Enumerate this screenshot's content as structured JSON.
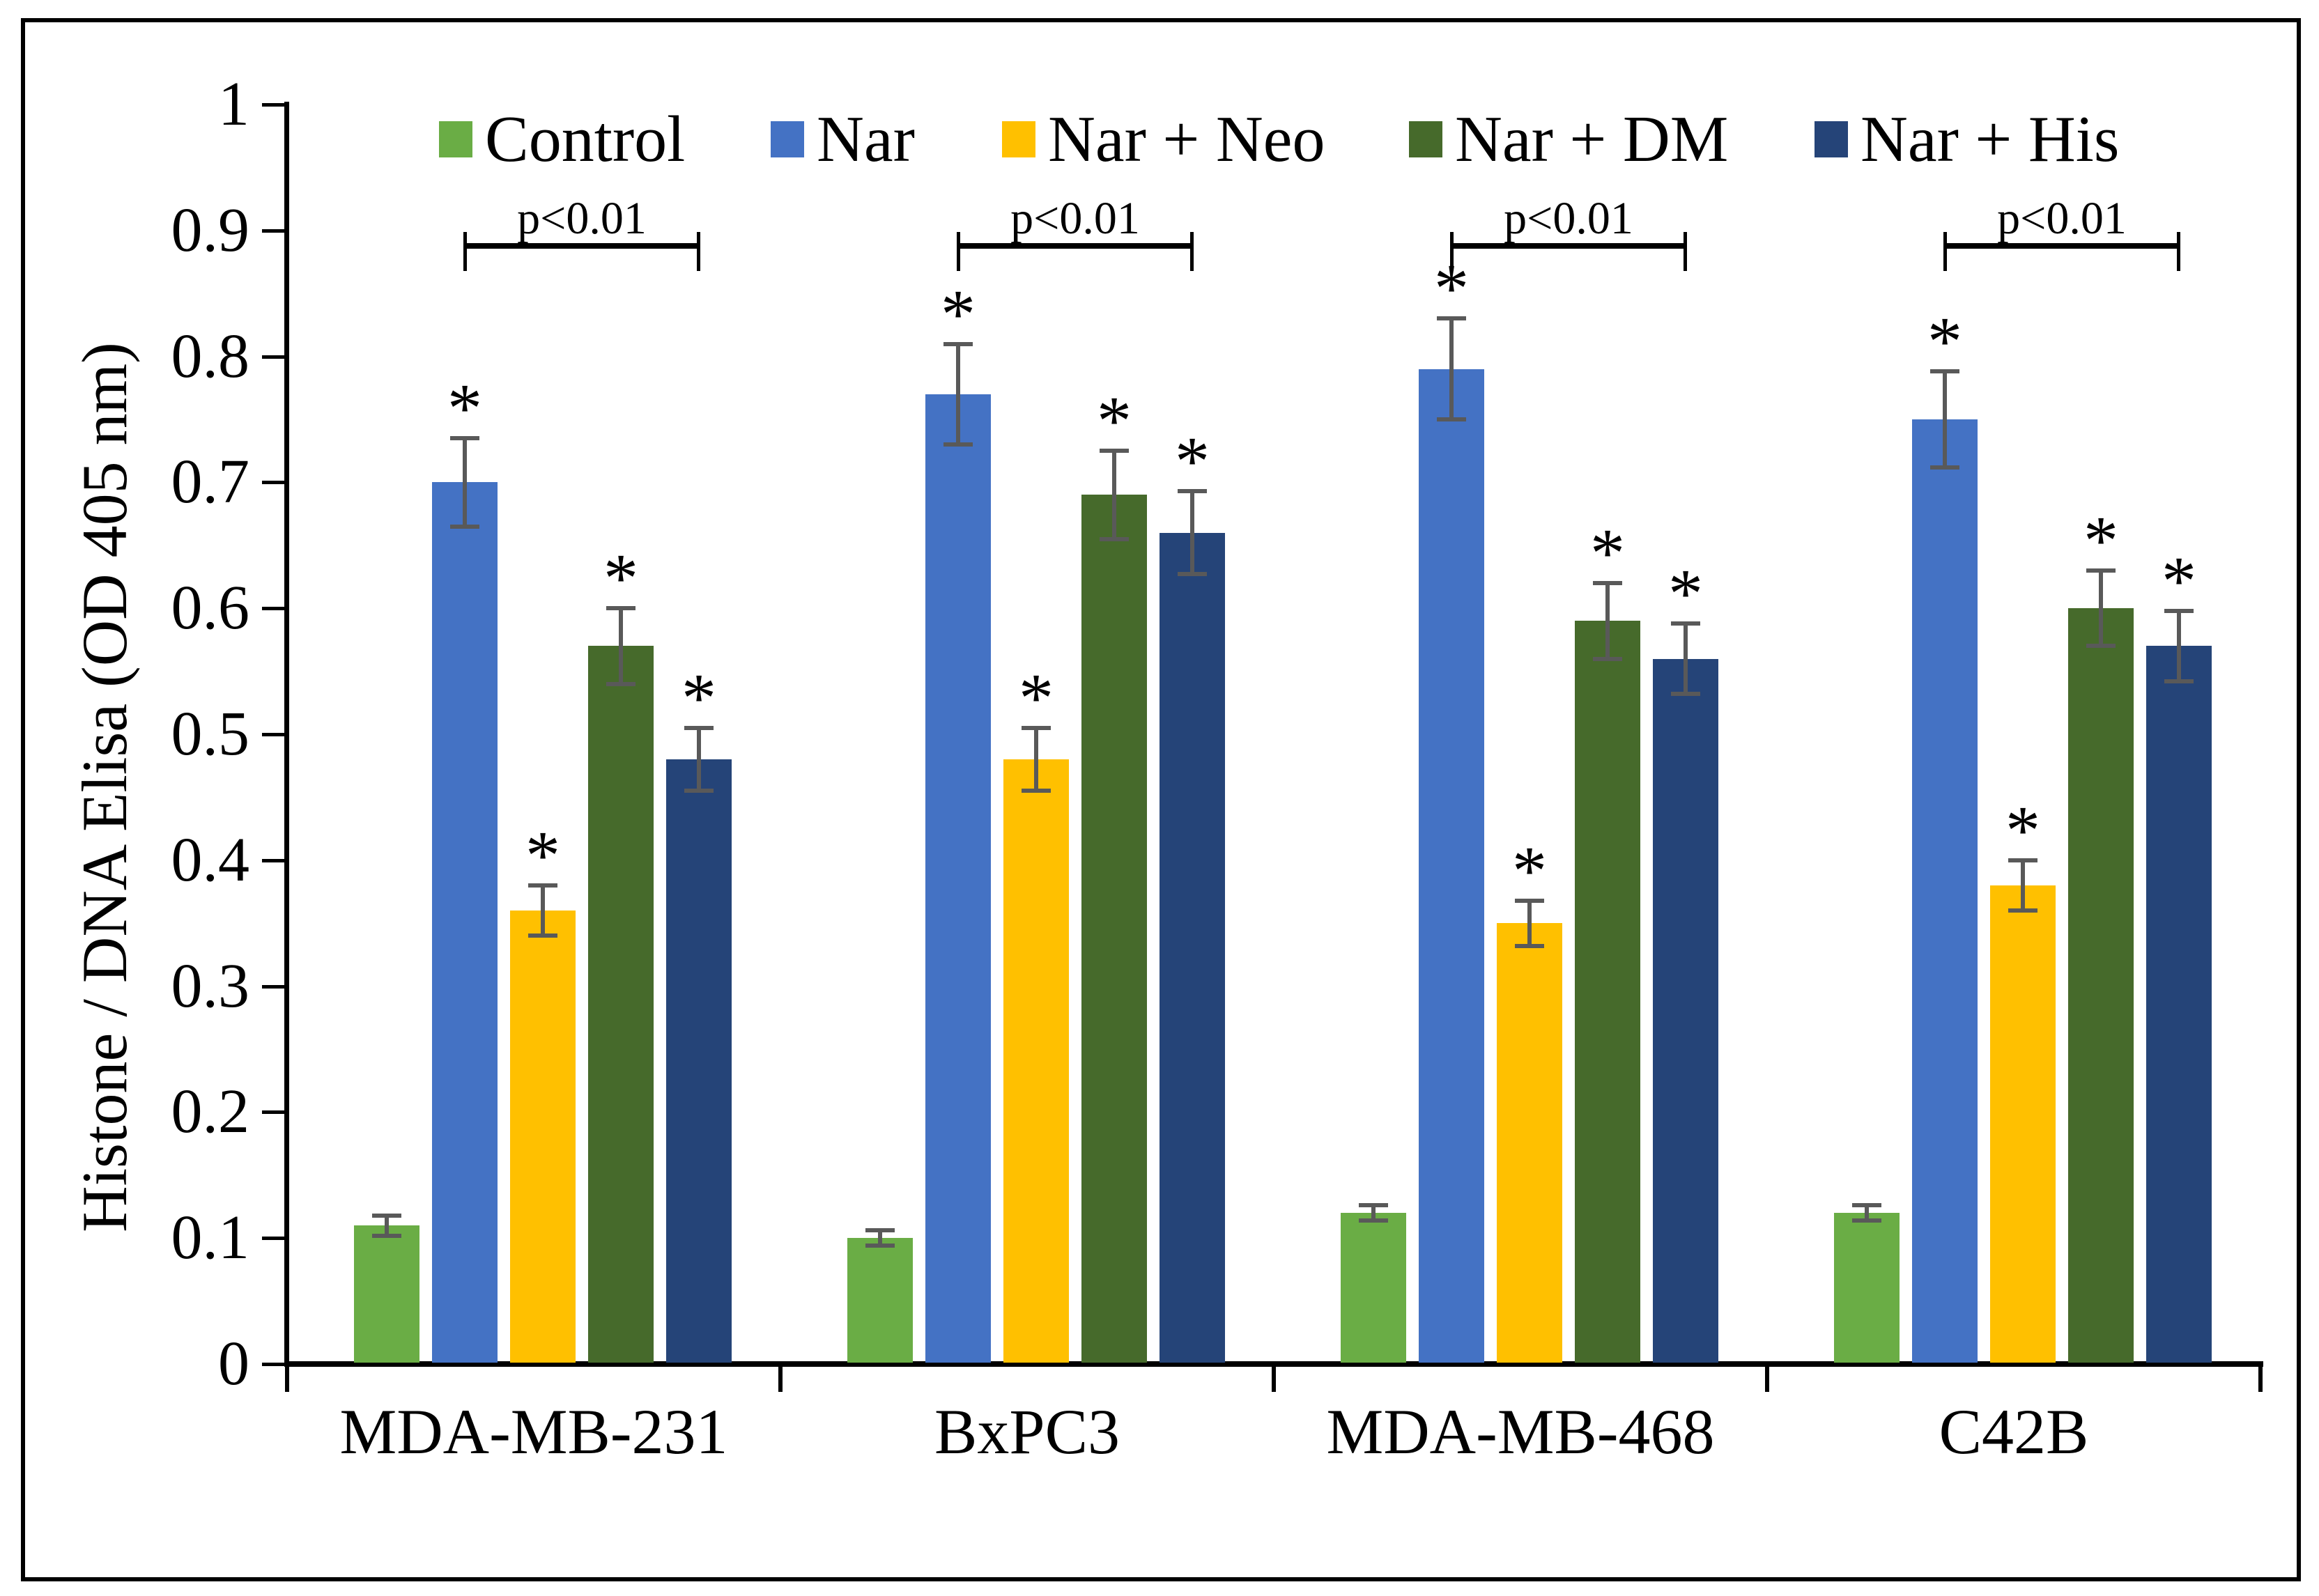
{
  "figure": {
    "background": "#ffffff",
    "border_color": "#000000",
    "error_bar_color": "#595959",
    "axis_color": "#000000"
  },
  "y_axis": {
    "label": "Histone / DNA Elisa (OD 405 nm)",
    "tick_labels": [
      "0",
      "0.1",
      "0.2",
      "0.3",
      "0.4",
      "0.5",
      "0.6",
      "0.7",
      "0.8",
      "0.9",
      "1"
    ],
    "min": 0,
    "max": 1
  },
  "x_axis": {
    "categories": [
      "MDA-MB-231",
      "BxPC3",
      "MDA-MB-468",
      "C42B"
    ]
  },
  "legend": {
    "position": "top",
    "items": [
      {
        "label": "Control",
        "color": "#6AAD45"
      },
      {
        "label": "Nar",
        "color": "#4472C4"
      },
      {
        "label": "Nar + Neo",
        "color": "#FFC000"
      },
      {
        "label": "Nar + DM",
        "color": "#466A2B"
      },
      {
        "label": "Nar + His",
        "color": "#254478"
      }
    ]
  },
  "significance": {
    "star_symbol": "*",
    "bracket_label": "p<0.01"
  },
  "chart_data": {
    "type": "bar",
    "title": "",
    "xlabel": "",
    "ylabel": "Histone / DNA Elisa (OD 405 nm)",
    "ylim": [
      0,
      1
    ],
    "yticks": [
      0,
      0.1,
      0.2,
      0.3,
      0.4,
      0.5,
      0.6,
      0.7,
      0.8,
      0.9,
      1
    ],
    "grid": false,
    "legend_position": "top",
    "categories": [
      "MDA-MB-231",
      "BxPC3",
      "MDA-MB-468",
      "C42B"
    ],
    "series": [
      {
        "name": "Control",
        "color": "#6AAD45",
        "values": [
          0.11,
          0.1,
          0.12,
          0.12
        ],
        "errors": [
          0.008,
          0.006,
          0.006,
          0.006
        ],
        "significant": [
          false,
          false,
          false,
          false
        ]
      },
      {
        "name": "Nar",
        "color": "#4472C4",
        "values": [
          0.7,
          0.77,
          0.79,
          0.75
        ],
        "errors": [
          0.035,
          0.04,
          0.04,
          0.038
        ],
        "significant": [
          true,
          true,
          true,
          true
        ]
      },
      {
        "name": "Nar + Neo",
        "color": "#FFC000",
        "values": [
          0.36,
          0.48,
          0.35,
          0.38
        ],
        "errors": [
          0.02,
          0.025,
          0.018,
          0.02
        ],
        "significant": [
          true,
          true,
          true,
          true
        ]
      },
      {
        "name": "Nar + DM",
        "color": "#466A2B",
        "values": [
          0.57,
          0.69,
          0.59,
          0.6
        ],
        "errors": [
          0.03,
          0.035,
          0.03,
          0.03
        ],
        "significant": [
          true,
          true,
          true,
          true
        ]
      },
      {
        "name": "Nar + His",
        "color": "#254478",
        "values": [
          0.48,
          0.66,
          0.56,
          0.57
        ],
        "errors": [
          0.025,
          0.033,
          0.028,
          0.028
        ],
        "significant": [
          true,
          true,
          true,
          true
        ]
      }
    ],
    "annotations": [
      {
        "group": "MDA-MB-231",
        "label": "p<0.01",
        "from_series": "Nar",
        "to_series": "Nar + His"
      },
      {
        "group": "BxPC3",
        "label": "p<0.01",
        "from_series": "Nar",
        "to_series": "Nar + His"
      },
      {
        "group": "MDA-MB-468",
        "label": "p<0.01",
        "from_series": "Nar",
        "to_series": "Nar + His"
      },
      {
        "group": "C42B",
        "label": "p<0.01",
        "from_series": "Nar",
        "to_series": "Nar + His"
      }
    ]
  }
}
